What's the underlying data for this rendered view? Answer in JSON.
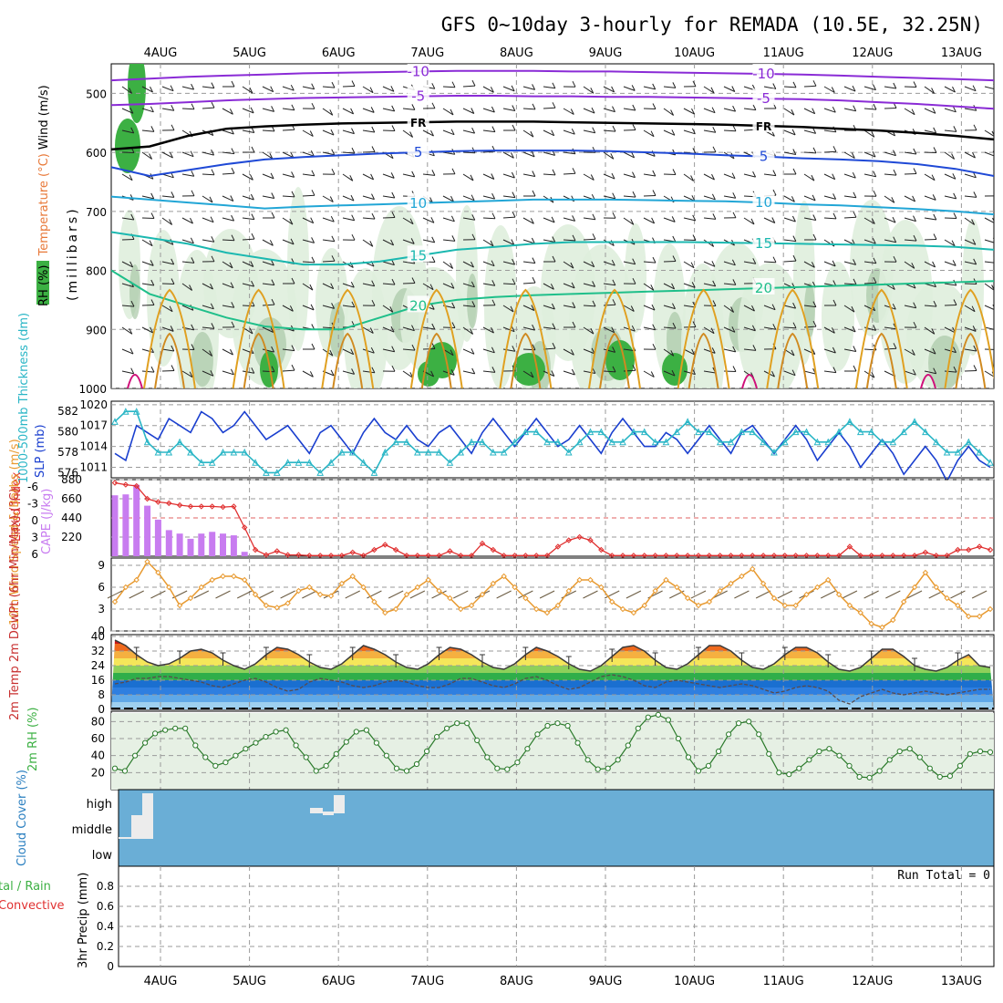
{
  "title": "GFS 0~10day 3-hourly for REMADA (10.5E, 32.25N)",
  "date_labels": [
    "4AUG",
    "5AUG",
    "6AUG",
    "7AUG",
    "8AUG",
    "9AUG",
    "10AUG",
    "11AUG",
    "12AUG",
    "13AUG"
  ],
  "colors": {
    "frame": "#000000",
    "grid": "#9a9a9a",
    "rh_green": "#3cb043",
    "rh_light": "#dfeedd",
    "temp_purple": "#8a2bd6",
    "temp_blue": "#1f49d6",
    "temp_cyan": "#22a6d6",
    "temp_teal": "#1bb8b0",
    "temp_green": "#1fbf8a",
    "temp_orange": "#e0a020",
    "slp_blue": "#1a3fcf",
    "thick_cyan": "#2ab6c6",
    "cape_violet": "#c87cf0",
    "li_red": "#e03030",
    "wind_orange": "#e89a30",
    "cloud_blue": "#6aaed6"
  },
  "chart_data": [
    {
      "id": "upper-air",
      "type": "heatmap",
      "ylabel_parts": [
        "RH (%)",
        "Temperature (°C)",
        "Wind (m/s)"
      ],
      "axis_title": "(millibars)",
      "levels": [
        1000,
        900,
        800,
        700,
        600,
        500
      ],
      "ylim": [
        1000,
        450
      ],
      "contours": [
        {
          "label": "-10",
          "color": "temp_purple",
          "p": [
            478,
            475,
            472,
            470,
            468,
            466,
            465,
            464,
            463,
            462,
            462,
            462,
            463,
            463,
            464,
            465,
            466,
            467,
            468,
            470,
            472,
            474,
            476,
            478
          ]
        },
        {
          "label": "-5",
          "color": "temp_purple",
          "p": [
            520,
            518,
            515,
            512,
            510,
            508,
            507,
            506,
            505,
            504,
            504,
            505,
            505,
            506,
            506,
            507,
            508,
            509,
            510,
            512,
            515,
            518,
            522,
            526
          ]
        },
        {
          "label": "FR",
          "color": "frame",
          "p": [
            595,
            590,
            572,
            560,
            556,
            553,
            551,
            550,
            549,
            548,
            548,
            548,
            549,
            550,
            551,
            552,
            553,
            555,
            557,
            560,
            563,
            567,
            572,
            578
          ]
        },
        {
          "label": "5",
          "color": "temp_blue",
          "p": [
            625,
            640,
            630,
            620,
            612,
            608,
            605,
            602,
            600,
            598,
            597,
            597,
            597,
            598,
            600,
            602,
            605,
            607,
            610,
            612,
            615,
            620,
            628,
            640
          ]
        },
        {
          "label": "10",
          "color": "temp_cyan",
          "p": [
            675,
            680,
            685,
            690,
            695,
            692,
            690,
            688,
            686,
            684,
            682,
            680,
            680,
            680,
            681,
            682,
            683,
            685,
            688,
            690,
            693,
            696,
            700,
            705
          ]
        },
        {
          "label": "15",
          "color": "temp_teal",
          "p": [
            735,
            745,
            755,
            770,
            780,
            790,
            790,
            785,
            775,
            765,
            760,
            755,
            752,
            752,
            752,
            752,
            753,
            754,
            755,
            756,
            757,
            758,
            760,
            765
          ]
        },
        {
          "label": "20",
          "color": "temp_green",
          "p": [
            800,
            840,
            860,
            880,
            895,
            900,
            900,
            880,
            860,
            850,
            845,
            842,
            840,
            838,
            836,
            834,
            832,
            830,
            828,
            826,
            824,
            822,
            820,
            818
          ]
        }
      ]
    },
    {
      "id": "slp-thickness",
      "type": "line",
      "ylabel_left": "1000-500mb Thickness (dm)",
      "ylabel_right": "SLP (mb)",
      "slp_ticks": [
        1011,
        1014,
        1017,
        1020
      ],
      "thick_ticks": [
        576,
        578,
        580,
        582
      ],
      "ylim_slp": [
        1009.5,
        1020.5
      ],
      "ylim_thick": [
        575.5,
        583
      ],
      "series": [
        {
          "name": "SLP",
          "color": "slp_blue",
          "values": [
            1013,
            1012,
            1017,
            1016,
            1015,
            1018,
            1017,
            1016,
            1019,
            1018,
            1016,
            1017,
            1019,
            1017,
            1015,
            1016,
            1017,
            1015,
            1013,
            1016,
            1017,
            1015,
            1013,
            1016,
            1018,
            1016,
            1015,
            1017,
            1015,
            1014,
            1016,
            1017,
            1015,
            1013,
            1016,
            1018,
            1016,
            1014,
            1016,
            1018,
            1016,
            1014,
            1015,
            1017,
            1015,
            1013,
            1016,
            1018,
            1016,
            1014,
            1014,
            1016,
            1015,
            1013,
            1015,
            1017,
            1015,
            1013,
            1016,
            1017,
            1015,
            1013,
            1015,
            1017,
            1015,
            1012,
            1014,
            1016,
            1014,
            1011,
            1013,
            1015,
            1013,
            1010,
            1012,
            1014,
            1012,
            1009,
            1012,
            1014,
            1012,
            1011
          ]
        },
        {
          "name": "Thickness",
          "color": "thick_cyan",
          "values": [
            581,
            582,
            582,
            579,
            578,
            578,
            579,
            578,
            577,
            577,
            578,
            578,
            578,
            577,
            576,
            576,
            577,
            577,
            577,
            576,
            577,
            578,
            578,
            577,
            576,
            578,
            579,
            579,
            578,
            578,
            578,
            577,
            578,
            579,
            579,
            578,
            578,
            579,
            580,
            580,
            579,
            579,
            578,
            579,
            580,
            580,
            579,
            579,
            580,
            580,
            579,
            579,
            580,
            581,
            580,
            580,
            579,
            579,
            580,
            580,
            579,
            578,
            579,
            580,
            580,
            579,
            579,
            580,
            581,
            580,
            580,
            579,
            579,
            580,
            581,
            580,
            579,
            578,
            578,
            579,
            578,
            577
          ]
        }
      ]
    },
    {
      "id": "cape-li",
      "type": "bar",
      "ylabel_left": "Lifted Index",
      "ylabel_right": "CAPE (J/kg)",
      "li_ticks": [
        "-6",
        "-3",
        "0",
        "3",
        "6"
      ],
      "cape_ticks": [
        220,
        440,
        660,
        880
      ],
      "ylim_cape": [
        0,
        880
      ],
      "cape_values": [
        700,
        710,
        820,
        580,
        420,
        300,
        260,
        200,
        260,
        280,
        260,
        240,
        50,
        0
      ],
      "li_values": [
        -5.5,
        -5.2,
        -5.0,
        -3.0,
        -2.5,
        -2.3,
        -2.0,
        -1.8,
        -1.8,
        -1.8,
        -1.7,
        -1.8,
        1.5,
        5.0,
        5.8,
        5.2,
        5.8,
        5.8,
        5.9,
        5.9,
        5.9,
        5.9,
        5.4,
        5.9,
        5.0,
        4.2,
        5.0,
        5.9,
        5.9,
        5.9,
        5.9,
        5.2,
        5.9,
        5.9,
        4.0,
        5.0,
        5.9,
        5.9,
        5.9,
        5.9,
        5.9,
        4.5,
        3.5,
        3.0,
        3.5,
        5.0,
        5.9,
        5.9,
        5.9,
        5.9,
        5.9,
        5.9,
        5.9,
        5.9,
        5.9,
        5.9,
        5.9,
        5.9,
        5.9,
        5.9,
        5.9,
        5.9,
        5.9,
        5.9,
        5.9,
        5.9,
        5.9,
        5.9,
        4.5,
        5.9,
        5.9,
        5.9,
        5.9,
        5.9,
        5.9,
        5.4,
        5.9,
        5.9,
        5.0,
        5.0,
        4.5,
        5.0
      ]
    },
    {
      "id": "wind10m",
      "type": "line",
      "ylabel": "10m Wind Speed & Barbs (m/s)",
      "ticks": [
        0,
        3,
        6,
        9
      ],
      "ylim": [
        0,
        10
      ],
      "values": [
        4.0,
        6.0,
        7.0,
        9.5,
        8.0,
        6.0,
        3.5,
        4.5,
        6.0,
        7.0,
        7.5,
        7.5,
        7.0,
        5.0,
        3.5,
        3.2,
        3.8,
        5.5,
        6.0,
        5.0,
        4.8,
        6.5,
        7.5,
        6.0,
        4.0,
        2.5,
        3.0,
        5.0,
        6.0,
        7.0,
        5.5,
        4.5,
        3.0,
        3.5,
        5.0,
        6.5,
        7.5,
        6.0,
        4.5,
        3.0,
        2.5,
        3.5,
        5.5,
        7.0,
        7.0,
        6.0,
        4.0,
        3.0,
        2.5,
        3.5,
        5.5,
        7.0,
        6.0,
        4.5,
        3.5,
        4.0,
        5.5,
        6.5,
        7.5,
        8.5,
        6.5,
        4.5,
        3.5,
        3.5,
        5.0,
        6.0,
        7.0,
        5.0,
        3.5,
        2.5,
        1.0,
        0.5,
        1.5,
        4.0,
        6.0,
        8.0,
        6.0,
        4.5,
        3.5,
        2.0,
        2.0,
        3.0
      ]
    },
    {
      "id": "temp2m",
      "type": "area",
      "ylabel": "2m Temp 2m DewPt (6hr Min/Max) (°C)",
      "ticks": [
        0,
        8,
        16,
        24,
        32,
        40
      ],
      "ylim": [
        0,
        40
      ],
      "temp_values": [
        38,
        35,
        30,
        26,
        24,
        25,
        28,
        32,
        33,
        31,
        27,
        24,
        22,
        25,
        30,
        34,
        33,
        30,
        26,
        23,
        22,
        25,
        30,
        35,
        33,
        30,
        26,
        23,
        22,
        25,
        30,
        34,
        33,
        30,
        26,
        23,
        22,
        25,
        30,
        34,
        32,
        29,
        25,
        22,
        21,
        24,
        29,
        34,
        35,
        32,
        27,
        23,
        22,
        25,
        30,
        35,
        35,
        32,
        27,
        23,
        22,
        25,
        30,
        34,
        34,
        31,
        26,
        22,
        21,
        23,
        28,
        33,
        33,
        29,
        24,
        22,
        21,
        23,
        27,
        30,
        24,
        23
      ],
      "dew_values": [
        14,
        15,
        17,
        17,
        18,
        18,
        17,
        16,
        15,
        13,
        12,
        14,
        16,
        17,
        15,
        12,
        10,
        11,
        15,
        17,
        16,
        15,
        13,
        12,
        13,
        15,
        16,
        15,
        13,
        12,
        12,
        14,
        17,
        17,
        15,
        13,
        12,
        14,
        17,
        18,
        16,
        13,
        11,
        12,
        15,
        18,
        19,
        18,
        16,
        13,
        12,
        15,
        16,
        15,
        14,
        13,
        12,
        13,
        14,
        13,
        11,
        9,
        10,
        12,
        13,
        12,
        10,
        5,
        3,
        7,
        9,
        11,
        9,
        8,
        9,
        10,
        9,
        8,
        9,
        10,
        11,
        11
      ]
    },
    {
      "id": "rh2m",
      "type": "area",
      "ylabel": "2m RH (%)",
      "ticks": [
        20,
        40,
        60,
        80
      ],
      "ylim": [
        0,
        90
      ],
      "values": [
        25,
        22,
        40,
        55,
        66,
        70,
        72,
        72,
        52,
        38,
        28,
        32,
        40,
        48,
        55,
        62,
        68,
        70,
        52,
        38,
        22,
        28,
        42,
        56,
        68,
        70,
        55,
        40,
        25,
        22,
        30,
        45,
        62,
        72,
        78,
        78,
        58,
        38,
        25,
        24,
        32,
        48,
        65,
        75,
        78,
        75,
        55,
        35,
        24,
        25,
        35,
        52,
        72,
        85,
        88,
        82,
        60,
        38,
        22,
        28,
        45,
        65,
        78,
        80,
        65,
        42,
        20,
        18,
        25,
        35,
        45,
        48,
        40,
        28,
        15,
        14,
        22,
        35,
        45,
        48,
        38,
        25,
        15,
        16,
        28,
        42,
        45,
        44
      ]
    },
    {
      "id": "cloud",
      "type": "bar",
      "ylabel": "Cloud Cover (%)",
      "tick_labels": [
        "high",
        "middle",
        "low"
      ]
    },
    {
      "id": "precip",
      "type": "bar",
      "ylabel_lines": [
        "tal / Rain",
        "Convective",
        "3hr Precip (mm)"
      ],
      "ticks": [
        "0",
        "0.2",
        "0.4",
        "0.6",
        "0.8"
      ],
      "ylim": [
        0,
        1
      ],
      "run_total": "Run Total = 0",
      "values": []
    }
  ]
}
